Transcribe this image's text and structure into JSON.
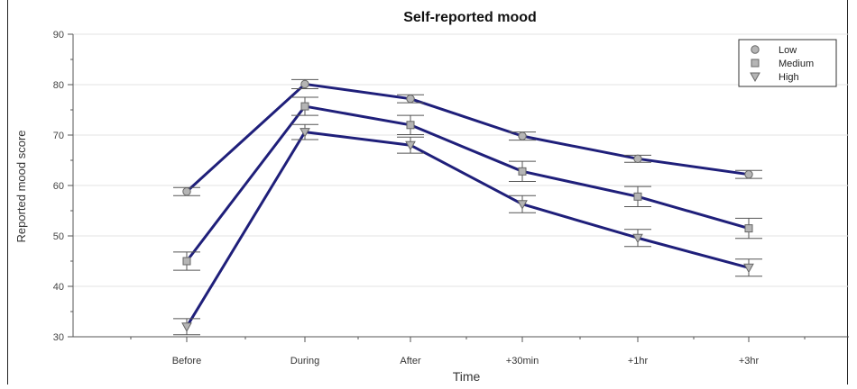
{
  "chart_data": {
    "type": "line",
    "title": "Self-reported mood",
    "xlabel": "Time",
    "ylabel": "Reported mood score",
    "categories": [
      "Before",
      "During",
      "After",
      "+30min",
      "+1hr",
      "+3hr"
    ],
    "ylim": [
      30,
      90
    ],
    "yticks": [
      "30",
      "40",
      "50",
      "60",
      "70",
      "80",
      "90"
    ],
    "grid": true,
    "legend_position": "top-right",
    "line_color": "#1f1f7a",
    "series": [
      {
        "name": "Low",
        "marker": "circle",
        "values": [
          58.8,
          80.1,
          77.2,
          69.8,
          65.3,
          62.2
        ],
        "errors": [
          0.8,
          0.9,
          0.8,
          0.8,
          0.7,
          0.8
        ]
      },
      {
        "name": "Medium",
        "marker": "square",
        "values": [
          45.0,
          75.7,
          72.0,
          62.8,
          57.8,
          51.5
        ],
        "errors": [
          1.8,
          1.8,
          1.9,
          2.0,
          2.0,
          2.0
        ]
      },
      {
        "name": "High",
        "marker": "triangle",
        "values": [
          32.0,
          70.6,
          68.0,
          56.3,
          49.6,
          43.7
        ],
        "errors": [
          1.6,
          1.5,
          1.6,
          1.7,
          1.7,
          1.7
        ]
      }
    ]
  }
}
